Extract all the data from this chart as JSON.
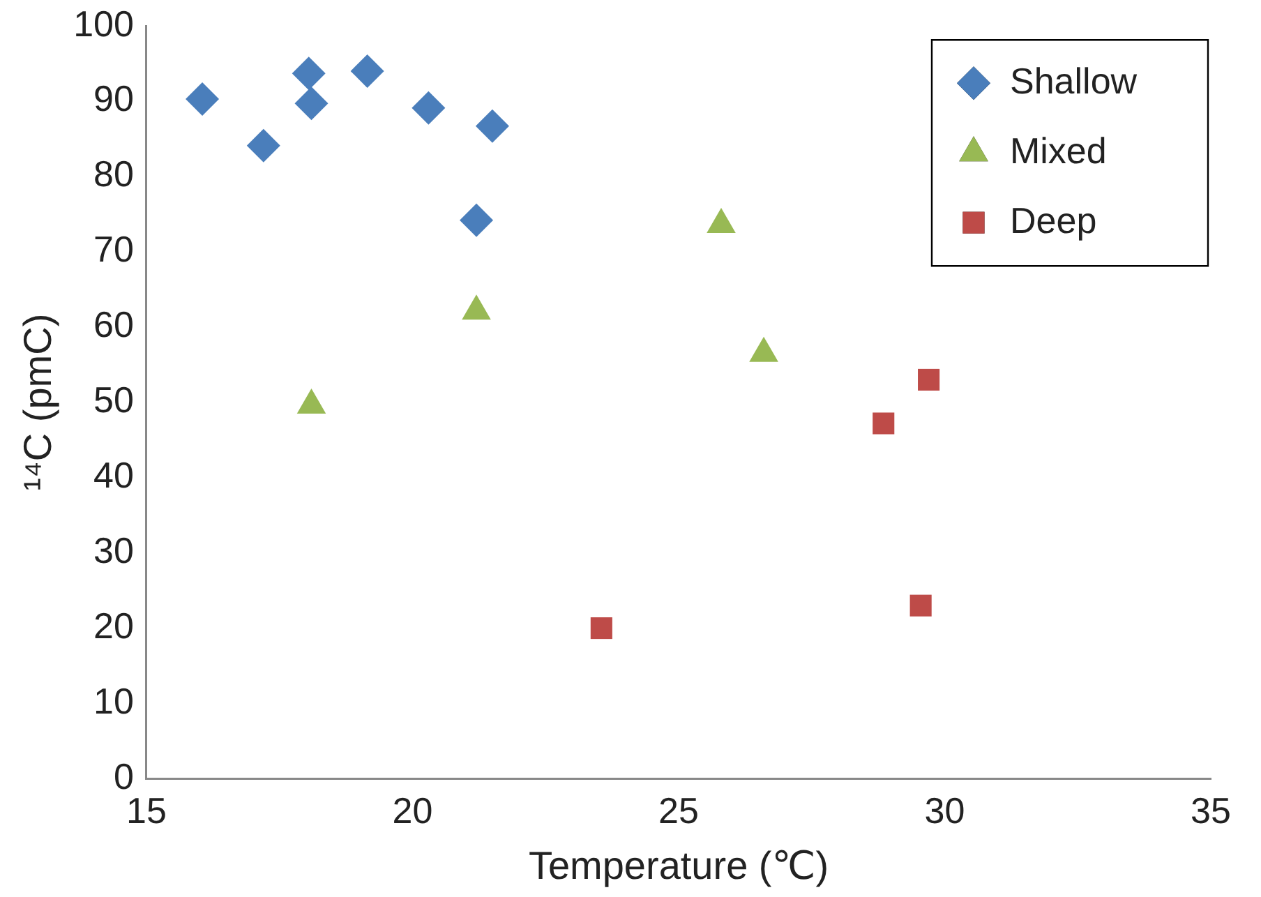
{
  "chart_data": {
    "type": "scatter",
    "xlabel": "Temperature (℃)",
    "ylabel": "¹⁴C (pmC)",
    "xlim": [
      15,
      35
    ],
    "xticks": [
      15,
      20,
      25,
      30,
      35
    ],
    "ylim": [
      0,
      100
    ],
    "yticks": [
      0,
      10,
      20,
      30,
      40,
      50,
      60,
      70,
      80,
      90,
      100
    ],
    "grid": false,
    "legend": "top right",
    "series": [
      {
        "name": "Shallow",
        "color": "#4a7ebb",
        "marker": "diamond",
        "x": [
          16.05,
          17.2,
          18.05,
          18.1,
          19.15,
          20.3,
          21.5,
          21.2
        ],
        "values": [
          90.3,
          84.1,
          93.7,
          89.7,
          94.0,
          89.1,
          86.7,
          74.2
        ]
      },
      {
        "name": "Mixed",
        "color": "#98b954",
        "marker": "triangle",
        "x": [
          18.1,
          21.2,
          25.8,
          26.6
        ],
        "values": [
          49.6,
          62.1,
          73.6,
          56.5
        ]
      },
      {
        "name": "Deep",
        "color": "#be4b48",
        "marker": "square",
        "x": [
          23.55,
          28.85,
          29.7,
          29.55
        ],
        "values": [
          20.0,
          47.2,
          53.0,
          23.0
        ]
      }
    ]
  }
}
